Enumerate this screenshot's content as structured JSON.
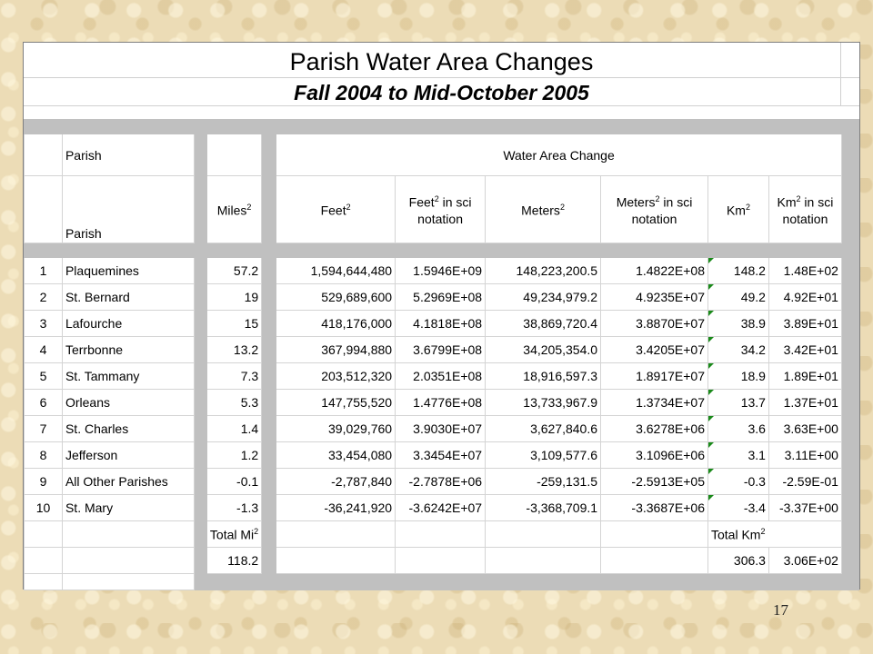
{
  "title": "Parish Water Area Changes",
  "subtitle": "Fall 2004 to Mid-October 2005",
  "headers": {
    "parish_top": "Parish",
    "group": "Water Area Change",
    "parish": "Parish",
    "miles": "Miles",
    "feet": "Feet",
    "feet_sci": " in sci notation",
    "feet_sci_base": "Feet",
    "meters": "Meters",
    "meters_sci_base": "Meters",
    "meters_sci": " in sci notation",
    "km": "Km",
    "km_sci_base": "Km",
    "km_sci": " in sci notation",
    "sup": "2"
  },
  "rows": [
    {
      "n": "1",
      "parish": "Plaquemines",
      "miles": "57.2",
      "feet": "1,594,644,480",
      "feet_sci": "1.5946E+09",
      "meters": "148,223,200.5",
      "meters_sci": "1.4822E+08",
      "km": "148.2",
      "km_sci": "1.48E+02"
    },
    {
      "n": "2",
      "parish": "St. Bernard",
      "miles": "19",
      "feet": "529,689,600",
      "feet_sci": "5.2969E+08",
      "meters": "49,234,979.2",
      "meters_sci": "4.9235E+07",
      "km": "49.2",
      "km_sci": "4.92E+01"
    },
    {
      "n": "3",
      "parish": "Lafourche",
      "miles": "15",
      "feet": "418,176,000",
      "feet_sci": "4.1818E+08",
      "meters": "38,869,720.4",
      "meters_sci": "3.8870E+07",
      "km": "38.9",
      "km_sci": "3.89E+01"
    },
    {
      "n": "4",
      "parish": "Terrbonne",
      "miles": "13.2",
      "feet": "367,994,880",
      "feet_sci": "3.6799E+08",
      "meters": "34,205,354.0",
      "meters_sci": "3.4205E+07",
      "km": "34.2",
      "km_sci": "3.42E+01"
    },
    {
      "n": "5",
      "parish": "St. Tammany",
      "miles": "7.3",
      "feet": "203,512,320",
      "feet_sci": "2.0351E+08",
      "meters": "18,916,597.3",
      "meters_sci": "1.8917E+07",
      "km": "18.9",
      "km_sci": "1.89E+01"
    },
    {
      "n": "6",
      "parish": "Orleans",
      "miles": "5.3",
      "feet": "147,755,520",
      "feet_sci": "1.4776E+08",
      "meters": "13,733,967.9",
      "meters_sci": "1.3734E+07",
      "km": "13.7",
      "km_sci": "1.37E+01"
    },
    {
      "n": "7",
      "parish": "St. Charles",
      "miles": "1.4",
      "feet": "39,029,760",
      "feet_sci": "3.9030E+07",
      "meters": "3,627,840.6",
      "meters_sci": "3.6278E+06",
      "km": "3.6",
      "km_sci": "3.63E+00"
    },
    {
      "n": "8",
      "parish": "Jefferson",
      "miles": "1.2",
      "feet": "33,454,080",
      "feet_sci": "3.3454E+07",
      "meters": "3,109,577.6",
      "meters_sci": "3.1096E+06",
      "km": "3.1",
      "km_sci": "3.11E+00"
    },
    {
      "n": "9",
      "parish": "All Other Parishes",
      "miles": "-0.1",
      "feet": "-2,787,840",
      "feet_sci": "-2.7878E+06",
      "meters": "-259,131.5",
      "meters_sci": "-2.5913E+05",
      "km": "-0.3",
      "km_sci": "-2.59E-01"
    },
    {
      "n": "10",
      "parish": "St. Mary",
      "miles": "-1.3",
      "feet": "-36,241,920",
      "feet_sci": "-3.6242E+07",
      "meters": "-3,368,709.1",
      "meters_sci": "-3.3687E+06",
      "km": "-3.4",
      "km_sci": "-3.37E+00"
    }
  ],
  "totals": {
    "mi_label": "Total Mi",
    "km_label": "Total Km",
    "sup": "2",
    "mi_value": "118.2",
    "km_value": "306.3",
    "km_sci_value": "3.06E+02"
  },
  "page_number": "17"
}
